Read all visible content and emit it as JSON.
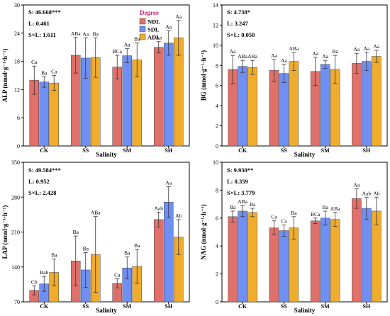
{
  "colors": {
    "NDL": "#e0706a",
    "SDL": "#6f8ff2",
    "ADL": "#f0ac2c",
    "legend_title": "#c0277a",
    "bar_edge": "#444444"
  },
  "chart_data": [
    {
      "id": "ALP",
      "type": "bar",
      "ylabel": "ALP (nmol·g⁻¹·h⁻¹)",
      "xlabel": "Salinity",
      "ylim": [
        0,
        30
      ],
      "yticks": [
        0,
        6,
        12,
        18,
        24,
        30
      ],
      "categories": [
        "CK",
        "SS",
        "SM",
        "SH"
      ],
      "series": [
        {
          "name": "NDL",
          "values": [
            14.0,
            19.3,
            16.8,
            21.0
          ],
          "errors": [
            3.0,
            3.8,
            2.5,
            1.2
          ]
        },
        {
          "name": "SDL",
          "values": [
            13.6,
            18.7,
            19.2,
            21.9
          ],
          "errors": [
            1.1,
            4.3,
            1.5,
            2.6
          ]
        },
        {
          "name": "ADL",
          "values": [
            13.4,
            18.8,
            18.3,
            23.0
          ],
          "errors": [
            1.6,
            4.2,
            3.6,
            3.7
          ]
        }
      ],
      "labels": [
        [
          "Ca",
          "Ba",
          "Ca"
        ],
        [
          "ABa",
          "Aa",
          "Ba"
        ],
        [
          "BCa",
          "Aa",
          "Ba"
        ],
        [
          "Aa",
          "Aa",
          "Aa"
        ]
      ],
      "stats": [
        "S: 46.668***",
        "L: 0.461",
        "S×L: 1.611"
      ],
      "legend": {
        "title": "Degree",
        "entries": [
          "NDL",
          "SDL",
          "ADL"
        ],
        "position": "top-right"
      }
    },
    {
      "id": "BG",
      "type": "bar",
      "ylabel": "BG (nmol·g⁻¹·h⁻¹)",
      "xlabel": "Salinity",
      "ylim": [
        0,
        14
      ],
      "yticks": [
        0,
        2,
        4,
        6,
        8,
        10,
        12,
        14
      ],
      "categories": [
        "CK",
        "SS",
        "SM",
        "SH"
      ],
      "series": [
        {
          "name": "NDL",
          "values": [
            7.6,
            7.5,
            7.4,
            8.2
          ],
          "errors": [
            1.4,
            1.1,
            1.4,
            1.0
          ]
        },
        {
          "name": "SDL",
          "values": [
            7.9,
            7.2,
            8.1,
            8.4
          ],
          "errors": [
            0.6,
            0.9,
            0.4,
            0.9
          ]
        },
        {
          "name": "ADL",
          "values": [
            7.8,
            8.4,
            7.6,
            8.9
          ],
          "errors": [
            0.7,
            0.9,
            1.4,
            0.6
          ]
        }
      ],
      "labels": [
        [
          "Aa",
          "ABa",
          "ABa"
        ],
        [
          "Aa",
          "Aa",
          "ABa"
        ],
        [
          "Aa",
          "Aa",
          "Ba"
        ],
        [
          "Aa",
          "Aa",
          "Aa"
        ]
      ],
      "stats": [
        "S: 4.738*",
        "L: 3.247",
        "S×L: 0.050"
      ]
    },
    {
      "id": "LAP",
      "type": "bar",
      "ylabel": "LAP (nmol·g⁻¹·h⁻¹)",
      "xlabel": "Salinity",
      "ylim": [
        70,
        350
      ],
      "yticks": [
        70,
        140,
        210,
        280,
        350
      ],
      "categories": [
        "CK",
        "SS",
        "SM",
        "SH"
      ],
      "series": [
        {
          "name": "NDL",
          "values": [
            93,
            152,
            107,
            235
          ],
          "errors": [
            9,
            50,
            9,
            15
          ]
        },
        {
          "name": "SDL",
          "values": [
            106,
            134,
            138,
            270
          ],
          "errors": [
            15,
            35,
            22,
            31
          ]
        },
        {
          "name": "ADL",
          "values": [
            129,
            165,
            141,
            200
          ],
          "errors": [
            27,
            76,
            34,
            35
          ]
        }
      ],
      "labels": [
        [
          "Cb",
          "Bab",
          "Ba"
        ],
        [
          "Ba",
          "Ba",
          "ABa"
        ],
        [
          "Ca",
          "Ba",
          "Ba"
        ],
        [
          "Aab",
          "Aa",
          "Ab"
        ]
      ],
      "stats": [
        "S: 49.584***",
        "L: 0.952",
        "S×L: 2.428"
      ]
    },
    {
      "id": "NAG",
      "type": "bar",
      "ylabel": "NAG (nmol·g⁻¹·h⁻¹)",
      "xlabel": "Salinity",
      "ylim": [
        0,
        10
      ],
      "yticks": [
        0,
        2,
        4,
        6,
        8,
        10
      ],
      "categories": [
        "CK",
        "SS",
        "SM",
        "SH"
      ],
      "series": [
        {
          "name": "NDL",
          "values": [
            6.1,
            5.3,
            5.8,
            7.4
          ],
          "errors": [
            0.4,
            0.5,
            0.2,
            0.7
          ]
        },
        {
          "name": "SDL",
          "values": [
            6.5,
            5.1,
            6.0,
            6.7
          ],
          "errors": [
            0.4,
            0.4,
            0.5,
            0.8
          ]
        },
        {
          "name": "ADL",
          "values": [
            6.4,
            5.3,
            5.9,
            6.5
          ],
          "errors": [
            0.3,
            0.8,
            0.5,
            1.0
          ]
        }
      ],
      "labels": [
        [
          "Ba",
          "ABa",
          "Ba"
        ],
        [
          "Ca",
          "Ca",
          "Ba"
        ],
        [
          "BCa",
          "Ba",
          "ABa"
        ],
        [
          "Aa",
          "Aab",
          "Ab"
        ]
      ],
      "stats": [
        "S: 9.930**",
        "L: 0.359",
        "S×L: 3.779"
      ]
    }
  ]
}
